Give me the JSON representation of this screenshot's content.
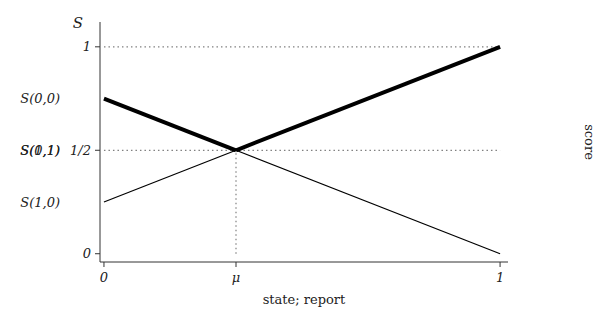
{
  "chart_data": {
    "type": "line",
    "x_label": "state; report",
    "y_label": "S",
    "annotations": [
      "score"
    ],
    "xlim": [
      -0.01,
      1.02
    ],
    "ylim": [
      -0.04,
      1.12
    ],
    "xticks": [
      0,
      {
        "value": 0.3333333333333333,
        "label": "μ"
      },
      1
    ],
    "yticks": [
      0,
      {
        "value": 0.5,
        "label": "1/2"
      },
      1
    ],
    "grid": false,
    "series": [
      {
        "name": "S(0,0)",
        "color": "#000000",
        "line_style": "thick",
        "x": [
          0.0,
          0.3333333333333333
        ],
        "values": [
          0.75,
          0.5
        ]
      },
      {
        "name": "S(0,1)",
        "color": "#000000",
        "line_style": "thin",
        "x": [
          0.3333333333333333,
          1.0
        ],
        "values": [
          0.5,
          0.0
        ]
      },
      {
        "name": "S(1,0)",
        "color": "#000000",
        "line_style": "thin",
        "x": [
          0.0,
          0.3333333333333333
        ],
        "values": [
          0.25,
          0.5
        ]
      },
      {
        "name": "S(1,1)",
        "color": "#000000",
        "line_style": "thick",
        "x": [
          0.3333333333333333,
          1.0
        ],
        "values": [
          0.5,
          1.0
        ]
      },
      {
        "color": "#808080",
        "line_style": "dotted",
        "x": [
          0,
          1
        ],
        "values": [
          1,
          1
        ]
      },
      {
        "color": "#808080",
        "line_style": "dotted",
        "x": [
          0,
          1
        ],
        "values": [
          0.5,
          0.5
        ]
      },
      {
        "color": "#808080",
        "line_style": "dotted",
        "x": [
          0.3333333333333333,
          0.3333333333333333
        ],
        "values": [
          0,
          0.5
        ]
      }
    ]
  }
}
